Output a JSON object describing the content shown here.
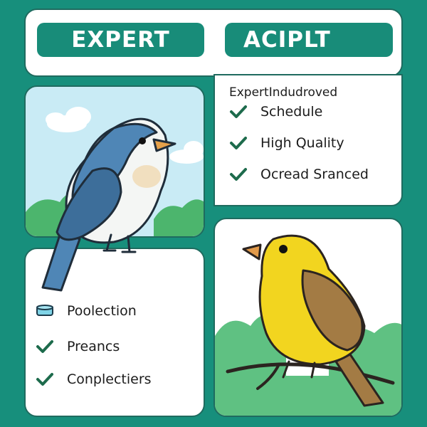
{
  "header": {
    "left_pill": "EXPERT",
    "right_pill": "ACIPLT"
  },
  "right_list": {
    "title": "ExpertIndudroved",
    "items": [
      {
        "label": "Schedule",
        "icon": "checkmark-icon"
      },
      {
        "label": "High Quality",
        "icon": "checkmark-icon"
      },
      {
        "label": "Ocread Sranced",
        "icon": "checkmark-icon"
      }
    ]
  },
  "left_list": {
    "items": [
      {
        "label": "Poolection",
        "icon": "cylinder-icon"
      },
      {
        "label": "Preancs",
        "icon": "checkmark-icon"
      },
      {
        "label": "Conplectiers",
        "icon": "checkmark-icon"
      }
    ]
  },
  "colors": {
    "background": "#178f7c",
    "pill": "#188c79",
    "check": "#1d6b4c",
    "blue_bird": "#4f86b6",
    "yellow_bird": "#f2d51f",
    "wing_brown": "#a37b44"
  }
}
